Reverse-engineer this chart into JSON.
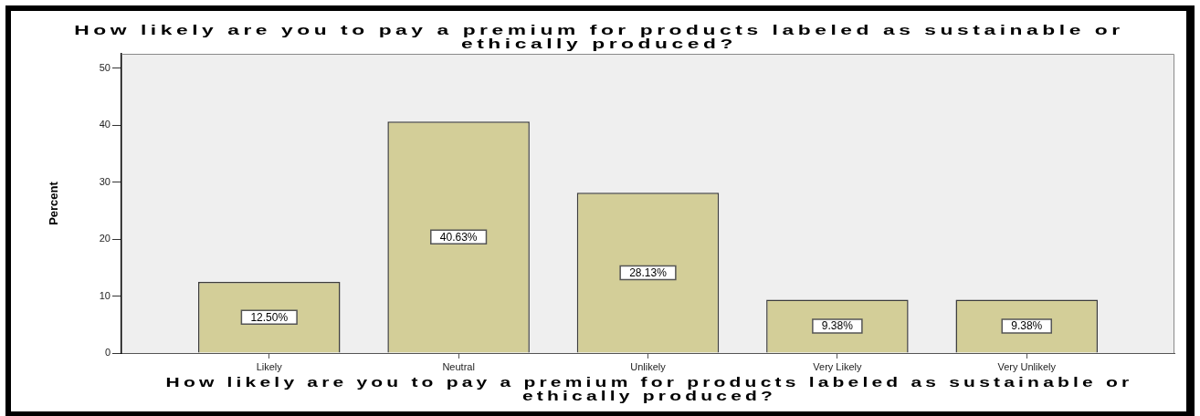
{
  "chart_data": {
    "type": "bar",
    "title": "How likely are you to pay a premium for products labeled as sustainable or ethically produced?",
    "xlabel": "How likely are you to pay a premium for products labeled as sustainable or ethically produced?",
    "ylabel": "Percent",
    "categories": [
      "Likely",
      "Neutral",
      "Unlikely",
      "Very Likely",
      "Very Unlikely"
    ],
    "values": [
      12.5,
      40.63,
      28.13,
      9.38,
      9.38
    ],
    "value_labels": [
      "12.50%",
      "40.63%",
      "28.13%",
      "9.38%",
      "9.38%"
    ],
    "color": "#d3ce98",
    "ylim": [
      0,
      52.5
    ],
    "yticks": [
      0,
      10,
      20,
      30,
      40,
      50
    ]
  }
}
